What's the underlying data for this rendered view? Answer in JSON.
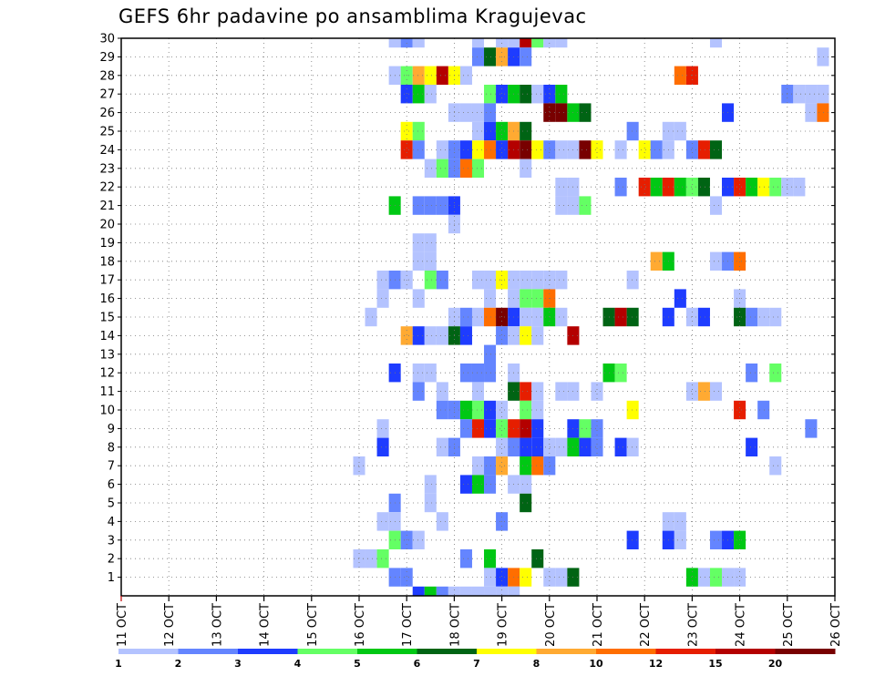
{
  "title": "GEFS 6hr padavine po ansamblima Kragujevac",
  "chart_data": {
    "type": "heatmap",
    "title": "GEFS 6hr padavine po ansamblima Kragujevac",
    "xlabel": "",
    "ylabel": "",
    "x_tick_labels": [
      "11 OCT",
      "12 OCT",
      "13 OCT",
      "14 OCT",
      "15 OCT",
      "16 OCT",
      "17 OCT",
      "18 OCT",
      "19 OCT",
      "20 OCT",
      "21 OCT",
      "22 OCT",
      "23 OCT",
      "24 OCT",
      "25 OCT",
      "26 OCT"
    ],
    "x_range_days": [
      11,
      26
    ],
    "y_range_members": [
      0,
      30
    ],
    "y_tick_labels": [
      "1",
      "2",
      "3",
      "4",
      "5",
      "6",
      "7",
      "8",
      "9",
      "10",
      "11",
      "12",
      "13",
      "14",
      "15",
      "16",
      "17",
      "18",
      "19",
      "20",
      "21",
      "22",
      "23",
      "24",
      "25",
      "26",
      "27",
      "28",
      "29",
      "30"
    ],
    "grid": true,
    "colorbar": {
      "levels": [
        "1",
        "2",
        "3",
        "4",
        "5",
        "6",
        "7",
        "8",
        "10",
        "12",
        "15",
        "20"
      ],
      "colors": [
        "#b4c3ff",
        "#6485ff",
        "#1e3cff",
        "#64ff64",
        "#00c814",
        "#006414",
        "#ffff00",
        "#ffaa32",
        "#ff6e00",
        "#e61e00",
        "#b40000",
        "#780000"
      ]
    },
    "cells_note": "each cell: day (OCT, 6-hour step), member, colorbar class 1-12",
    "cells": [
      [
        16.75,
        30,
        1
      ],
      [
        17.0,
        30,
        2
      ],
      [
        17.25,
        30,
        1
      ],
      [
        18.5,
        30,
        1
      ],
      [
        19.0,
        30,
        1
      ],
      [
        19.25,
        30,
        1
      ],
      [
        19.5,
        30,
        11
      ],
      [
        19.75,
        30,
        4
      ],
      [
        20.0,
        30,
        1
      ],
      [
        20.25,
        30,
        1
      ],
      [
        23.5,
        30,
        1
      ],
      [
        25.75,
        29,
        1
      ],
      [
        18.5,
        29,
        2
      ],
      [
        18.75,
        29,
        6
      ],
      [
        19.0,
        29,
        8
      ],
      [
        19.25,
        29,
        3
      ],
      [
        19.5,
        29,
        2
      ],
      [
        16.75,
        28,
        1
      ],
      [
        17.0,
        28,
        4
      ],
      [
        17.25,
        28,
        8
      ],
      [
        17.5,
        28,
        7
      ],
      [
        17.75,
        28,
        11
      ],
      [
        18.0,
        28,
        7
      ],
      [
        18.25,
        28,
        1
      ],
      [
        22.75,
        28,
        9
      ],
      [
        23.0,
        28,
        10
      ],
      [
        17.0,
        27,
        3
      ],
      [
        17.25,
        27,
        5
      ],
      [
        17.5,
        27,
        1
      ],
      [
        18.75,
        27,
        4
      ],
      [
        19.0,
        27,
        3
      ],
      [
        19.25,
        27,
        5
      ],
      [
        19.5,
        27,
        6
      ],
      [
        19.75,
        27,
        1
      ],
      [
        20.0,
        27,
        3
      ],
      [
        20.25,
        27,
        5
      ],
      [
        25.0,
        27,
        2
      ],
      [
        25.25,
        27,
        1
      ],
      [
        25.5,
        27,
        1
      ],
      [
        25.75,
        27,
        1
      ],
      [
        18.0,
        26,
        1
      ],
      [
        18.25,
        26,
        1
      ],
      [
        18.5,
        26,
        1
      ],
      [
        18.75,
        26,
        2
      ],
      [
        20.0,
        26,
        12
      ],
      [
        20.25,
        26,
        12
      ],
      [
        20.5,
        26,
        5
      ],
      [
        20.75,
        26,
        6
      ],
      [
        23.75,
        26,
        3
      ],
      [
        25.5,
        26,
        1
      ],
      [
        25.75,
        26,
        9
      ],
      [
        17.0,
        25,
        7
      ],
      [
        17.25,
        25,
        4
      ],
      [
        18.5,
        25,
        1
      ],
      [
        18.75,
        25,
        3
      ],
      [
        19.0,
        25,
        5
      ],
      [
        19.25,
        25,
        8
      ],
      [
        19.5,
        25,
        6
      ],
      [
        21.75,
        25,
        2
      ],
      [
        22.5,
        25,
        1
      ],
      [
        22.75,
        25,
        1
      ],
      [
        17.0,
        24,
        10
      ],
      [
        17.25,
        24,
        2
      ],
      [
        17.75,
        24,
        1
      ],
      [
        18.0,
        24,
        2
      ],
      [
        18.25,
        24,
        3
      ],
      [
        18.5,
        24,
        7
      ],
      [
        18.75,
        24,
        9
      ],
      [
        19.0,
        24,
        3
      ],
      [
        19.25,
        24,
        11
      ],
      [
        19.5,
        24,
        12
      ],
      [
        19.75,
        24,
        7
      ],
      [
        20.0,
        24,
        2
      ],
      [
        20.25,
        24,
        1
      ],
      [
        20.5,
        24,
        1
      ],
      [
        20.75,
        24,
        12
      ],
      [
        21.0,
        24,
        7
      ],
      [
        21.5,
        24,
        1
      ],
      [
        22.0,
        24,
        7
      ],
      [
        22.25,
        24,
        2
      ],
      [
        22.5,
        24,
        1
      ],
      [
        23.0,
        24,
        2
      ],
      [
        23.25,
        24,
        10
      ],
      [
        23.5,
        24,
        6
      ],
      [
        17.5,
        23,
        1
      ],
      [
        17.75,
        23,
        4
      ],
      [
        18.0,
        23,
        2
      ],
      [
        18.25,
        23,
        9
      ],
      [
        18.5,
        23,
        4
      ],
      [
        19.5,
        23,
        1
      ],
      [
        20.25,
        22,
        1
      ],
      [
        20.5,
        22,
        1
      ],
      [
        21.5,
        22,
        2
      ],
      [
        22.0,
        22,
        10
      ],
      [
        22.25,
        22,
        5
      ],
      [
        22.5,
        22,
        10
      ],
      [
        22.75,
        22,
        5
      ],
      [
        23.0,
        22,
        4
      ],
      [
        23.25,
        22,
        6
      ],
      [
        23.75,
        22,
        3
      ],
      [
        24.0,
        22,
        10
      ],
      [
        24.25,
        22,
        5
      ],
      [
        24.5,
        22,
        7
      ],
      [
        24.75,
        22,
        4
      ],
      [
        25.0,
        22,
        1
      ],
      [
        25.25,
        22,
        1
      ],
      [
        16.75,
        21,
        5
      ],
      [
        17.25,
        21,
        2
      ],
      [
        17.5,
        21,
        2
      ],
      [
        17.75,
        21,
        2
      ],
      [
        18.0,
        21,
        3
      ],
      [
        20.25,
        21,
        1
      ],
      [
        20.5,
        21,
        1
      ],
      [
        20.75,
        21,
        4
      ],
      [
        23.5,
        21,
        1
      ],
      [
        18.0,
        20,
        1
      ],
      [
        17.25,
        19,
        1
      ],
      [
        17.5,
        19,
        1
      ],
      [
        17.25,
        18,
        1
      ],
      [
        17.5,
        18,
        1
      ],
      [
        22.25,
        18,
        8
      ],
      [
        22.5,
        18,
        5
      ],
      [
        23.5,
        18,
        1
      ],
      [
        23.75,
        18,
        2
      ],
      [
        24.0,
        18,
        9
      ],
      [
        16.5,
        17,
        1
      ],
      [
        16.75,
        17,
        2
      ],
      [
        17.0,
        17,
        1
      ],
      [
        17.5,
        17,
        4
      ],
      [
        17.75,
        17,
        2
      ],
      [
        18.5,
        17,
        1
      ],
      [
        18.75,
        17,
        1
      ],
      [
        19.0,
        17,
        7
      ],
      [
        19.25,
        17,
        1
      ],
      [
        19.5,
        17,
        1
      ],
      [
        19.75,
        17,
        1
      ],
      [
        20.0,
        17,
        1
      ],
      [
        20.25,
        17,
        1
      ],
      [
        21.75,
        17,
        1
      ],
      [
        16.5,
        16,
        1
      ],
      [
        17.25,
        16,
        1
      ],
      [
        18.75,
        16,
        1
      ],
      [
        19.25,
        16,
        1
      ],
      [
        19.5,
        16,
        4
      ],
      [
        19.75,
        16,
        4
      ],
      [
        20.0,
        16,
        9
      ],
      [
        22.75,
        16,
        3
      ],
      [
        24.0,
        16,
        1
      ],
      [
        16.25,
        15,
        1
      ],
      [
        18.0,
        15,
        1
      ],
      [
        18.25,
        15,
        2
      ],
      [
        18.5,
        15,
        1
      ],
      [
        18.75,
        15,
        9
      ],
      [
        19.0,
        15,
        12
      ],
      [
        19.25,
        15,
        3
      ],
      [
        19.5,
        15,
        1
      ],
      [
        19.75,
        15,
        1
      ],
      [
        20.0,
        15,
        5
      ],
      [
        20.25,
        15,
        1
      ],
      [
        21.25,
        15,
        6
      ],
      [
        21.5,
        15,
        11
      ],
      [
        21.75,
        15,
        6
      ],
      [
        22.5,
        15,
        3
      ],
      [
        23.0,
        15,
        1
      ],
      [
        23.25,
        15,
        3
      ],
      [
        24.0,
        15,
        6
      ],
      [
        24.25,
        15,
        2
      ],
      [
        24.5,
        15,
        1
      ],
      [
        24.75,
        15,
        1
      ],
      [
        17.0,
        14,
        8
      ],
      [
        17.25,
        14,
        3
      ],
      [
        17.5,
        14,
        1
      ],
      [
        17.75,
        14,
        1
      ],
      [
        18.0,
        14,
        6
      ],
      [
        18.25,
        14,
        3
      ],
      [
        19.0,
        14,
        2
      ],
      [
        19.25,
        14,
        1
      ],
      [
        19.5,
        14,
        7
      ],
      [
        19.75,
        14,
        1
      ],
      [
        20.5,
        14,
        11
      ],
      [
        18.75,
        13,
        2
      ],
      [
        16.75,
        12,
        3
      ],
      [
        17.25,
        12,
        1
      ],
      [
        17.5,
        12,
        1
      ],
      [
        18.25,
        12,
        2
      ],
      [
        18.5,
        12,
        2
      ],
      [
        18.75,
        12,
        2
      ],
      [
        19.25,
        12,
        1
      ],
      [
        21.25,
        12,
        5
      ],
      [
        21.5,
        12,
        4
      ],
      [
        24.25,
        12,
        2
      ],
      [
        24.75,
        12,
        4
      ],
      [
        17.25,
        11,
        2
      ],
      [
        17.75,
        11,
        1
      ],
      [
        18.5,
        11,
        1
      ],
      [
        19.25,
        11,
        6
      ],
      [
        19.5,
        11,
        10
      ],
      [
        19.75,
        11,
        1
      ],
      [
        20.25,
        11,
        1
      ],
      [
        20.5,
        11,
        1
      ],
      [
        21.0,
        11,
        1
      ],
      [
        23.0,
        11,
        1
      ],
      [
        23.25,
        11,
        8
      ],
      [
        23.5,
        11,
        1
      ],
      [
        17.75,
        10,
        2
      ],
      [
        18.0,
        10,
        2
      ],
      [
        18.25,
        10,
        5
      ],
      [
        18.5,
        10,
        4
      ],
      [
        18.75,
        10,
        3
      ],
      [
        19.0,
        10,
        1
      ],
      [
        19.5,
        10,
        4
      ],
      [
        19.75,
        10,
        1
      ],
      [
        21.75,
        10,
        7
      ],
      [
        24.0,
        10,
        10
      ],
      [
        24.5,
        10,
        2
      ],
      [
        16.5,
        9,
        1
      ],
      [
        18.25,
        9,
        2
      ],
      [
        18.5,
        9,
        10
      ],
      [
        18.75,
        9,
        3
      ],
      [
        19.0,
        9,
        4
      ],
      [
        19.25,
        9,
        10
      ],
      [
        19.5,
        9,
        11
      ],
      [
        19.75,
        9,
        3
      ],
      [
        20.5,
        9,
        3
      ],
      [
        20.75,
        9,
        4
      ],
      [
        21.0,
        9,
        2
      ],
      [
        25.5,
        9,
        2
      ],
      [
        16.5,
        8,
        3
      ],
      [
        17.75,
        8,
        1
      ],
      [
        18.0,
        8,
        2
      ],
      [
        19.0,
        8,
        1
      ],
      [
        19.25,
        8,
        2
      ],
      [
        19.5,
        8,
        3
      ],
      [
        19.75,
        8,
        3
      ],
      [
        20.0,
        8,
        1
      ],
      [
        20.25,
        8,
        1
      ],
      [
        20.5,
        8,
        5
      ],
      [
        20.75,
        8,
        3
      ],
      [
        21.0,
        8,
        2
      ],
      [
        21.5,
        8,
        3
      ],
      [
        21.75,
        8,
        1
      ],
      [
        24.25,
        8,
        3
      ],
      [
        16.0,
        7,
        1
      ],
      [
        18.5,
        7,
        1
      ],
      [
        18.75,
        7,
        2
      ],
      [
        19.0,
        7,
        8
      ],
      [
        19.5,
        7,
        5
      ],
      [
        19.75,
        7,
        9
      ],
      [
        20.0,
        7,
        2
      ],
      [
        24.75,
        7,
        1
      ],
      [
        17.5,
        6,
        1
      ],
      [
        18.25,
        6,
        3
      ],
      [
        18.5,
        6,
        5
      ],
      [
        18.75,
        6,
        2
      ],
      [
        19.25,
        6,
        1
      ],
      [
        19.5,
        6,
        1
      ],
      [
        16.75,
        5,
        2
      ],
      [
        17.5,
        5,
        1
      ],
      [
        19.5,
        5,
        6
      ],
      [
        16.5,
        4,
        1
      ],
      [
        16.75,
        4,
        1
      ],
      [
        17.75,
        4,
        1
      ],
      [
        19.0,
        4,
        2
      ],
      [
        22.5,
        4,
        1
      ],
      [
        22.75,
        4,
        1
      ],
      [
        16.75,
        3,
        4
      ],
      [
        17.0,
        3,
        2
      ],
      [
        17.25,
        3,
        1
      ],
      [
        21.75,
        3,
        3
      ],
      [
        22.5,
        3,
        3
      ],
      [
        22.75,
        3,
        1
      ],
      [
        23.5,
        3,
        2
      ],
      [
        23.75,
        3,
        3
      ],
      [
        24.0,
        3,
        5
      ],
      [
        16.0,
        2,
        1
      ],
      [
        16.25,
        2,
        1
      ],
      [
        16.5,
        2,
        4
      ],
      [
        18.25,
        2,
        2
      ],
      [
        18.75,
        2,
        5
      ],
      [
        19.75,
        2,
        6
      ],
      [
        16.75,
        1,
        2
      ],
      [
        17.0,
        1,
        2
      ],
      [
        18.75,
        1,
        1
      ],
      [
        19.0,
        1,
        3
      ],
      [
        19.25,
        1,
        9
      ],
      [
        19.5,
        1,
        7
      ],
      [
        20.0,
        1,
        1
      ],
      [
        20.25,
        1,
        1
      ],
      [
        20.5,
        1,
        6
      ],
      [
        23.0,
        1,
        5
      ],
      [
        23.25,
        1,
        1
      ],
      [
        23.5,
        1,
        4
      ],
      [
        23.75,
        1,
        1
      ],
      [
        24.0,
        1,
        1
      ],
      [
        17.25,
        0,
        3
      ],
      [
        17.5,
        0,
        5
      ],
      [
        17.75,
        0,
        2
      ],
      [
        18.0,
        0,
        1
      ],
      [
        18.25,
        0,
        1
      ],
      [
        18.5,
        0,
        1
      ],
      [
        18.75,
        0,
        1
      ],
      [
        19.0,
        0,
        1
      ],
      [
        19.25,
        0,
        1
      ]
    ]
  }
}
